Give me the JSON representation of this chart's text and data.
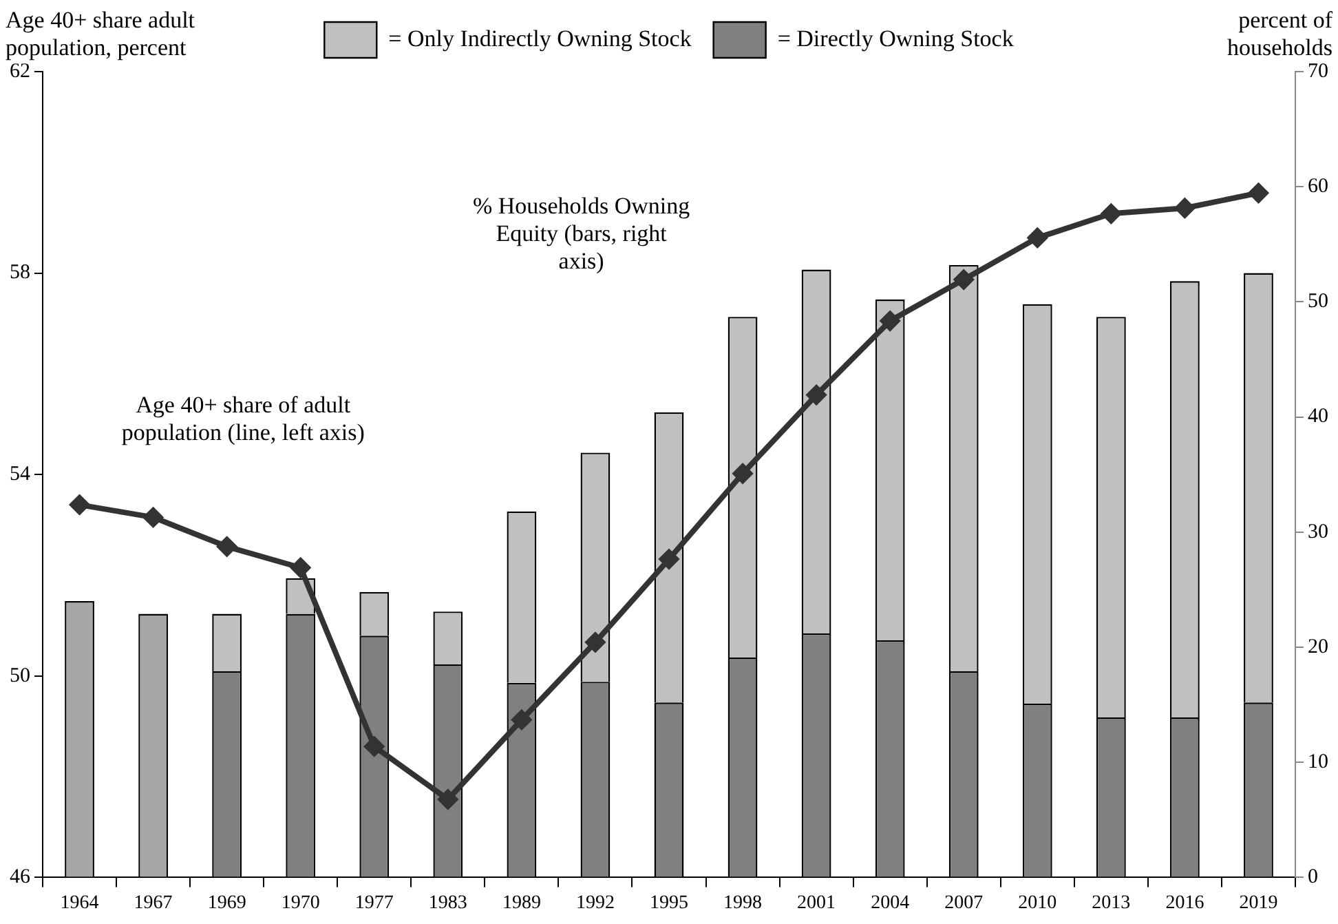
{
  "chart_data": {
    "type": "bar",
    "stacked": true,
    "ylabel": "Age 40+ share adult population, percent",
    "y2label": "percent of households",
    "categories": [
      "1964",
      "1967",
      "1969",
      "1970",
      "1977",
      "1983",
      "1989",
      "1992",
      "1995",
      "1998",
      "2001",
      "2004",
      "2007",
      "2010",
      "2013",
      "2016",
      "2019"
    ],
    "series": [
      {
        "color": "#a6a6a6",
        "axis": "y2",
        "values": [
          24.0,
          22.9,
          null,
          null,
          null,
          null,
          null,
          null,
          null,
          null,
          null,
          null,
          null,
          null,
          null,
          null,
          null
        ]
      },
      {
        "name": "= Directly Owning Stock",
        "color": "#808080",
        "axis": "y2",
        "values": [
          null,
          null,
          17.9,
          22.9,
          21.0,
          18.5,
          16.9,
          17.0,
          15.2,
          19.1,
          21.2,
          20.6,
          17.9,
          15.1,
          13.9,
          13.9,
          15.2
        ]
      },
      {
        "name": "= Only Indirectly Owning Stock",
        "color": "#c0c0c0",
        "axis": "y2",
        "values": [
          null,
          null,
          5.0,
          3.1,
          3.8,
          4.6,
          14.9,
          19.9,
          25.2,
          29.6,
          31.6,
          29.6,
          35.3,
          34.7,
          34.8,
          37.9,
          37.3
        ]
      },
      {
        "type": "line",
        "color": "#333333",
        "axis": "y",
        "marker": "diamond",
        "values": [
          53.4,
          53.15,
          52.57,
          52.15,
          48.6,
          47.55,
          49.13,
          50.67,
          52.32,
          54.02,
          55.58,
          57.05,
          57.87,
          58.7,
          59.18,
          59.29,
          59.59
        ]
      }
    ],
    "ylim": [
      46,
      62
    ],
    "yticks": [
      46,
      50,
      54,
      58,
      62
    ],
    "y2lim": [
      0,
      70
    ],
    "y2ticks": [
      0,
      10,
      20,
      30,
      40,
      50,
      60,
      70
    ],
    "grid": false,
    "legend": "top",
    "annotations": [
      "Age 40+ share of adult population (line, left axis)",
      "% Households Owning Equity (bars, right axis)"
    ]
  }
}
